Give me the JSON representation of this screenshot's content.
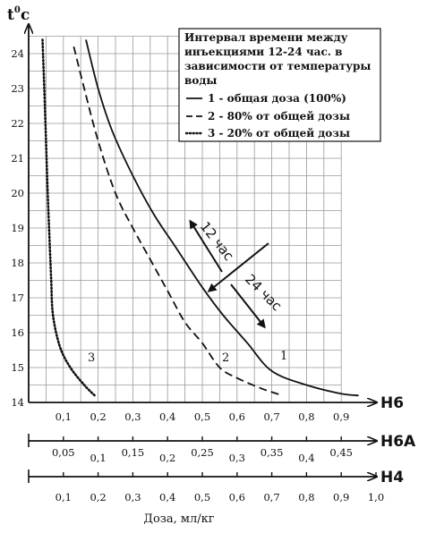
{
  "chart_data": {
    "type": "line",
    "ylabel": "t",
    "ylabel_sup": "0",
    "ylabel_unit": "c",
    "xlabel": "Доза, мл/кг",
    "y_ticks": [
      "14",
      "15",
      "16",
      "17",
      "18",
      "19",
      "20",
      "21",
      "22",
      "23",
      "24"
    ],
    "ylim": [
      14,
      24.5
    ],
    "xlim": [
      0,
      1.0
    ],
    "axes": [
      {
        "name": "Н6",
        "ticks": [
          "0,1",
          "0,2",
          "0,3",
          "0,4",
          "0,5",
          "0,6",
          "0,7",
          "0,8",
          "0,9"
        ],
        "values": [
          0.1,
          0.2,
          0.3,
          0.4,
          0.5,
          0.6,
          0.7,
          0.8,
          0.9
        ]
      },
      {
        "name": "Н6А",
        "ticks": [
          "0,05",
          "0,1",
          "0,15",
          "0,2",
          "0,25",
          "0,3",
          "0,35",
          "0,4",
          "0,45"
        ],
        "values": [
          0.05,
          0.1,
          0.15,
          0.2,
          0.25,
          0.3,
          0.35,
          0.4,
          0.45
        ]
      },
      {
        "name": "Н4",
        "ticks": [
          "0,1",
          "0,2",
          "0,3",
          "0,4",
          "0,5",
          "0,6",
          "0,7",
          "0,8",
          "0,9",
          "1,0"
        ],
        "values": [
          0.1,
          0.2,
          0.3,
          0.4,
          0.5,
          0.6,
          0.7,
          0.8,
          0.9,
          1.0
        ]
      }
    ],
    "legend": {
      "title": "Интервал времени между инъекциями 12-24 час.   в зависимости от температуры воды",
      "title_lines": [
        "Интервал времени между",
        "инъекциями 12-24 час.   в",
        "зависимости от температуры",
        "воды"
      ],
      "entries": [
        {
          "style": "solid",
          "label": "1 - общая доза (100%)"
        },
        {
          "style": "dashed",
          "label": "2 - 80% от общей дозы"
        },
        {
          "style": "dotted",
          "label": "3 - 20% от общей дозы"
        }
      ],
      "placement": "top-right"
    },
    "series": [
      {
        "id": "1",
        "style": "solid",
        "x": [
          0.165,
          0.2,
          0.24,
          0.3,
          0.36,
          0.42,
          0.5,
          0.56,
          0.63,
          0.7,
          0.8,
          0.9,
          0.95
        ],
        "y": [
          24.4,
          23.0,
          21.8,
          20.5,
          19.4,
          18.5,
          17.3,
          16.5,
          15.7,
          14.9,
          14.5,
          14.25,
          14.2
        ]
      },
      {
        "id": "2",
        "style": "dashed",
        "x": [
          0.13,
          0.16,
          0.2,
          0.25,
          0.3,
          0.35,
          0.4,
          0.45,
          0.5,
          0.55,
          0.6,
          0.67,
          0.73
        ],
        "y": [
          24.2,
          23.0,
          21.5,
          20.0,
          19.0,
          18.1,
          17.2,
          16.3,
          15.7,
          15.0,
          14.7,
          14.4,
          14.2
        ]
      },
      {
        "id": "3",
        "style": "dotted",
        "x": [
          0.04,
          0.045,
          0.05,
          0.055,
          0.06,
          0.065,
          0.07,
          0.09,
          0.12,
          0.16,
          0.19
        ],
        "y": [
          24.4,
          23.0,
          21.5,
          20.0,
          18.7,
          17.5,
          16.5,
          15.6,
          15.0,
          14.5,
          14.2
        ]
      }
    ],
    "annotations": [
      {
        "text": "12 час",
        "direction": "up-left"
      },
      {
        "text": "24 час",
        "direction": "down-right"
      },
      {
        "text": "1"
      },
      {
        "text": "2"
      },
      {
        "text": "3"
      }
    ],
    "grid": true
  }
}
